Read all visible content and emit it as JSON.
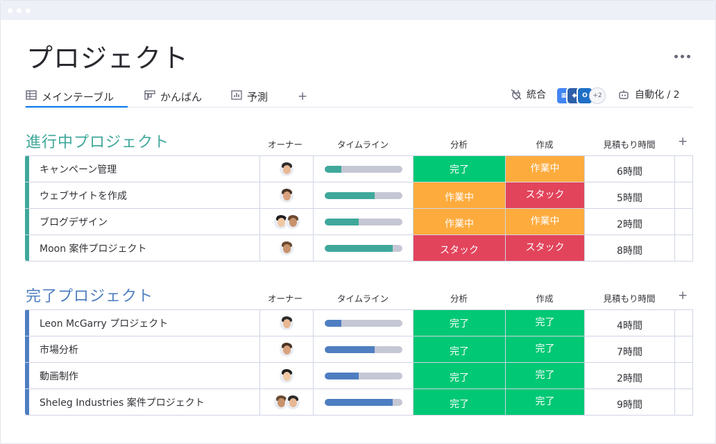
{
  "page_title": "プロジェクト",
  "tabs": [
    {
      "label": "メインテーブル",
      "icon": "table-icon",
      "active": true
    },
    {
      "label": "かんばん",
      "icon": "kanban-icon",
      "active": false
    },
    {
      "label": "予測",
      "icon": "chart-icon",
      "active": false
    }
  ],
  "add_tab_label": "+",
  "integrations": {
    "label": "統合",
    "extra": "+2"
  },
  "automation": {
    "label": "自動化 / 2"
  },
  "colors": {
    "accent": "#0073ea",
    "group1": "#3fa89b",
    "group2": "#4e7ec1",
    "done": "#00c875",
    "working": "#fdab3d",
    "stuck": "#e2445c"
  },
  "groups": [
    {
      "title": "進行中プロジェクト",
      "color": "#3fa89b",
      "headers": {
        "owner": "オーナー",
        "timeline": "タイムライン",
        "analysis": "分析",
        "creation": "作成",
        "estimate": "見積もり時間",
        "add": "+"
      },
      "rows": [
        {
          "name": "キャンペーン管理",
          "owners": 1,
          "progress": 0.22,
          "analysis": "完了",
          "analysis_status": "done",
          "creation": "作業中",
          "creation_status": "working",
          "time": "6時間"
        },
        {
          "name": "ウェブサイトを作成",
          "owners": 1,
          "progress": 0.65,
          "analysis": "作業中",
          "analysis_status": "working",
          "creation": "スタック",
          "creation_status": "stuck",
          "time": "5時間"
        },
        {
          "name": "ブログデザイン",
          "owners": 2,
          "progress": 0.44,
          "analysis": "作業中",
          "analysis_status": "working",
          "creation": "作業中",
          "creation_status": "working",
          "time": "2時間"
        },
        {
          "name": "Moon 案件プロジェクト",
          "owners": 1,
          "progress": 0.88,
          "analysis": "スタック",
          "analysis_status": "stuck",
          "creation": "スタック",
          "creation_status": "stuck",
          "time": "8時間"
        }
      ]
    },
    {
      "title": "完了プロジェクト",
      "color": "#4e7ec1",
      "headers": {
        "owner": "オーナー",
        "timeline": "タイムライン",
        "analysis": "分析",
        "creation": "作成",
        "estimate": "見積もり時間",
        "add": "+"
      },
      "rows": [
        {
          "name": "Leon McGarry プロジェクト",
          "owners": 1,
          "progress": 0.22,
          "analysis": "完了",
          "analysis_status": "done",
          "creation": "完了",
          "creation_status": "done",
          "time": "4時間"
        },
        {
          "name": "市場分析",
          "owners": 1,
          "progress": 0.65,
          "analysis": "完了",
          "analysis_status": "done",
          "creation": "完了",
          "creation_status": "done",
          "time": "7時間"
        },
        {
          "name": "動画制作",
          "owners": 1,
          "progress": 0.44,
          "analysis": "完了",
          "analysis_status": "done",
          "creation": "完了",
          "creation_status": "done",
          "time": "2時間"
        },
        {
          "name": "Sheleg Industries 案件プロジェクト",
          "owners": 2,
          "progress": 0.88,
          "analysis": "完了",
          "analysis_status": "done",
          "creation": "完了",
          "creation_status": "done",
          "time": "9時間"
        }
      ]
    }
  ]
}
